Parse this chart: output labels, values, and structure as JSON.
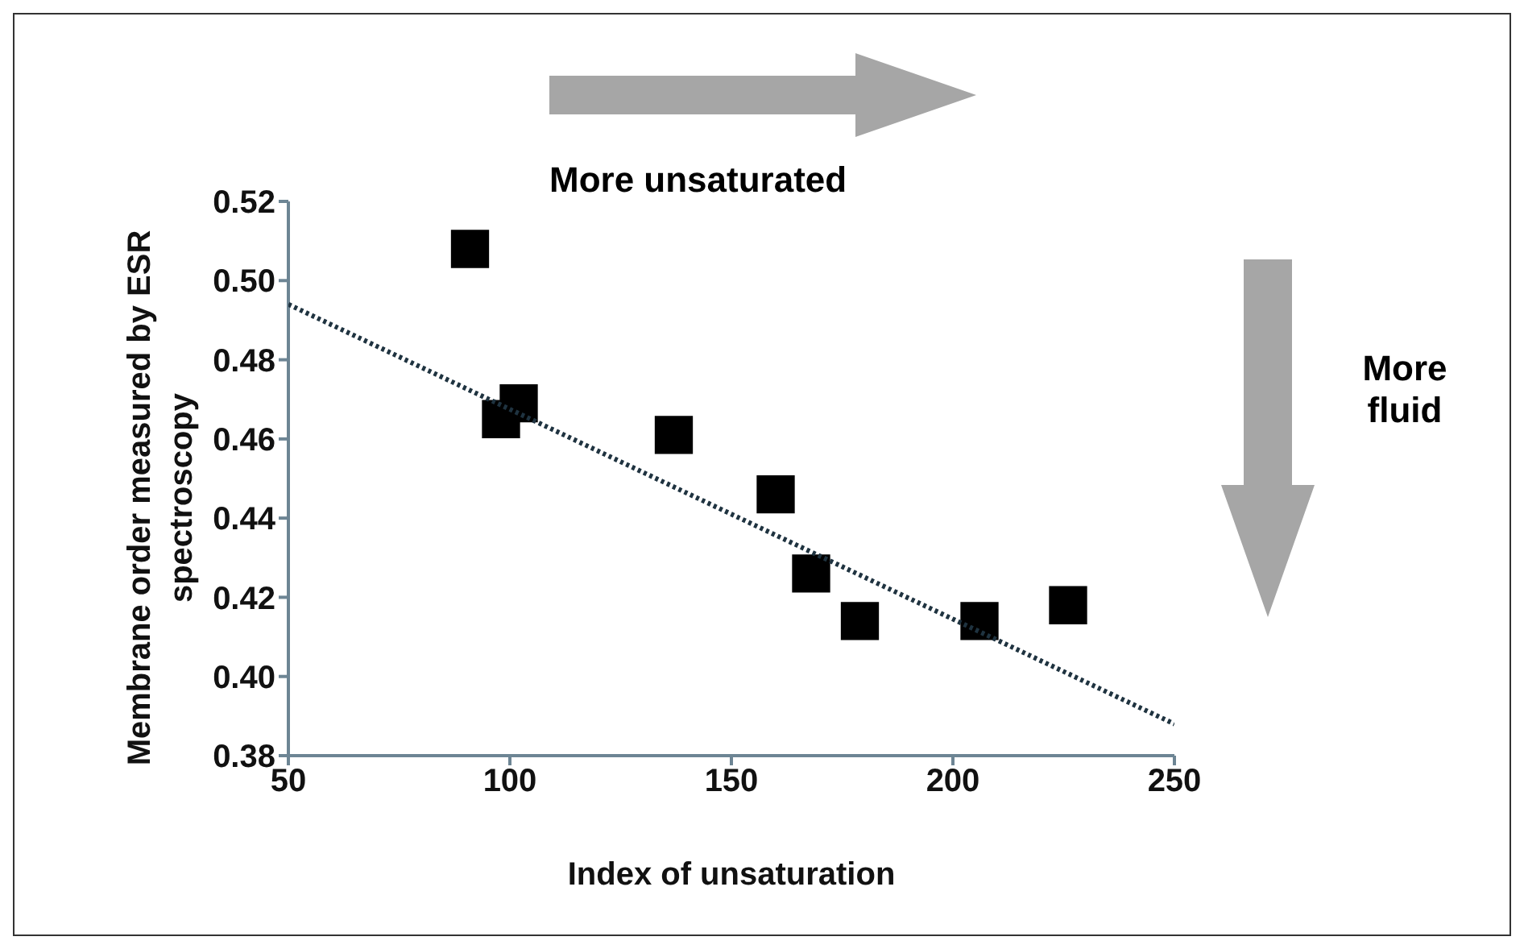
{
  "chart_data": {
    "type": "scatter",
    "xlabel": "Index of unsaturation",
    "ylabel": "Membrane order measured by ESR spectroscopy",
    "xlim": [
      50,
      250
    ],
    "xticks": [
      50,
      100,
      150,
      200,
      250
    ],
    "ylim": [
      0.38,
      0.52
    ],
    "yticks": [
      0.38,
      {
        "value": 0.4,
        "label": "0.40"
      },
      0.42,
      0.44,
      0.46,
      0.48,
      {
        "value": 0.5,
        "label": "0.50"
      },
      0.52
    ],
    "grid": false,
    "legend": false,
    "series": [
      {
        "color": "#000000",
        "marker": "square",
        "x": [
          91,
          98,
          102,
          137,
          160,
          168,
          179,
          206,
          226
        ],
        "values": [
          0.508,
          0.465,
          0.469,
          0.461,
          0.446,
          0.426,
          0.414,
          0.414,
          0.418
        ]
      },
      {
        "type": "line",
        "color": "#1f3340",
        "marker": "none",
        "line_style": "dotted",
        "x": [
          50,
          250
        ],
        "values": [
          0.494,
          0.388
        ]
      }
    ],
    "annotations": [
      "More unsaturated",
      "More fluid"
    ]
  }
}
